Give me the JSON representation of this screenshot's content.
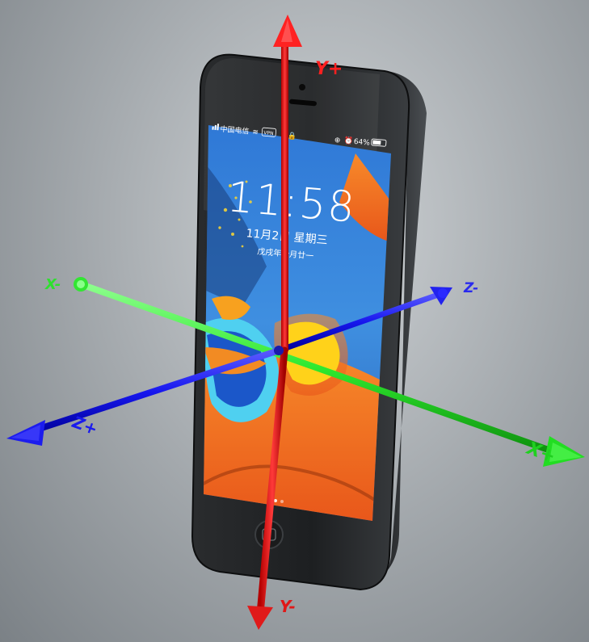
{
  "axes": {
    "y_plus": "Y+",
    "y_minus": "Y-",
    "x_plus": "X+",
    "x_minus": "X-",
    "z_plus": "Z+",
    "z_minus": "Z-"
  },
  "lockscreen": {
    "carrier": "中国电信",
    "vpn": "VPN",
    "battery": "64%",
    "time": "11:58",
    "date": "11月2日 星期三",
    "lunar": "戊戌年十月廿一"
  },
  "colors": {
    "y_axis": "#ff2a2a",
    "x_axis": "#3dff3d",
    "z_axis": "#1f1fff",
    "phone_body": "#222426",
    "screen_blue": "#3a7fd0",
    "screen_orange": "#f37420",
    "screen_yellow": "#ffd21a"
  }
}
